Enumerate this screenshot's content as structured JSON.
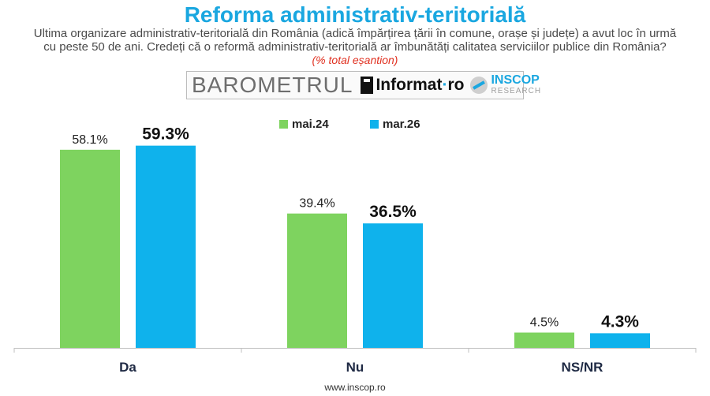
{
  "header": {
    "title": "Reforma administrativ-teritorială",
    "question_line1": "Ultima organizare administrativ-teritorială din România (adică împărțirea țării în comune, orașe și județe) a avut loc în urmă",
    "question_line2": "cu peste 50 de ani. Credeți că o reformă administrativ-teritorială ar îmbunătăți calitatea serviciilor publice din România?",
    "note": "(% total eșantion)"
  },
  "logos": {
    "barometrul": "BAROMETRUL",
    "informat": "Informat",
    "informat_dot": "·",
    "informat_ro": "ro",
    "inscop": "INSCOP",
    "inscop_sub": "RESEARCH"
  },
  "chart_data": {
    "type": "bar",
    "categories": [
      "Da",
      "Nu",
      "NS/NR"
    ],
    "series": [
      {
        "name": "mai.24",
        "values": [
          58.1,
          39.4,
          4.5
        ],
        "labels": [
          "58.1%",
          "39.4%",
          "4.5%"
        ],
        "color": "#7ed35f"
      },
      {
        "name": "mar.26",
        "values": [
          59.3,
          36.5,
          4.3
        ],
        "labels": [
          "59.3%",
          "36.5%",
          "4.3%"
        ],
        "color": "#0fb2ec"
      }
    ],
    "ylim": [
      0,
      65
    ],
    "grid": false,
    "legend_position": "top"
  },
  "footer": {
    "url": "www.inscop.ro"
  }
}
